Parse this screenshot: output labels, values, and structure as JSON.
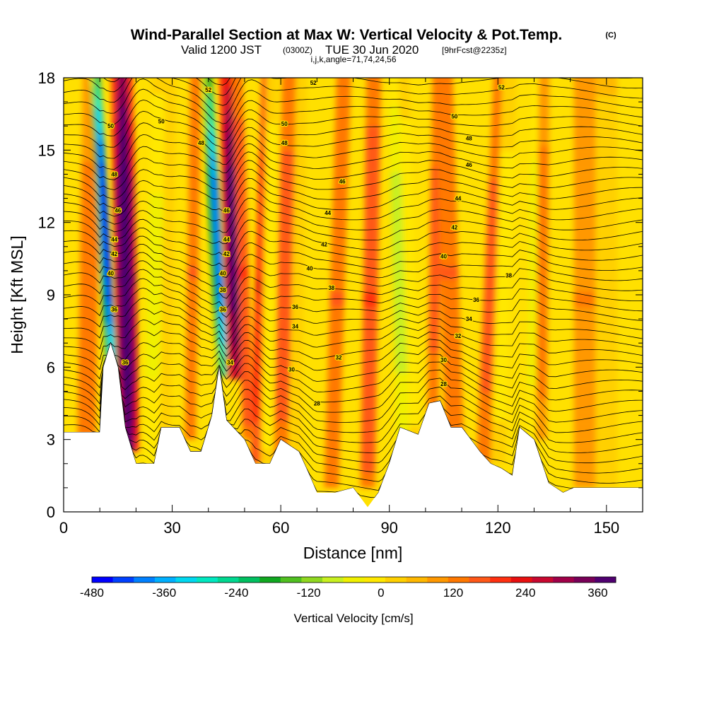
{
  "title": {
    "main": "Wind-Parallel Section at Max W: Vertical Velocity & Pot.Temp.",
    "copyright": "(C)",
    "valid_prefix": "Valid 1200 JST",
    "valid_utc": "(0300Z)",
    "valid_date": "TUE 30 Jun 2020",
    "forecast": "[9hrFcst@2235z]",
    "grid_info": "i,j,k,angle=71,74,24,56"
  },
  "chart_data": {
    "type": "heatmap",
    "xlabel": "Distance [nm]",
    "ylabel": "Height [Kft MSL]",
    "xlim": [
      0,
      160
    ],
    "ylim": [
      0,
      18
    ],
    "x_ticks": [
      0,
      30,
      60,
      90,
      120,
      150
    ],
    "y_ticks": [
      0,
      3,
      6,
      9,
      12,
      15,
      18
    ],
    "colorbar": {
      "title": "Vertical Velocity [cm/s]",
      "min": -480,
      "max": 390,
      "step": 30,
      "tick_values": [
        -480,
        -360,
        -240,
        -120,
        0,
        120,
        240,
        360
      ],
      "colors": [
        "#0000ff",
        "#0040ff",
        "#0080ff",
        "#00b0ff",
        "#00d8f0",
        "#00e8c0",
        "#00d890",
        "#00c060",
        "#10a820",
        "#50c020",
        "#90d820",
        "#c8f020",
        "#f0f000",
        "#ffe800",
        "#ffd000",
        "#ffb800",
        "#ff9800",
        "#ff7800",
        "#ff5818",
        "#ff3010",
        "#e81010",
        "#c80830",
        "#a00048",
        "#780058",
        "#500070"
      ]
    },
    "updrafts": [
      {
        "x": 18,
        "z_base": 2.5,
        "peak_wmax": 390
      },
      {
        "x": 48,
        "z_base": 5.5,
        "peak_wmax": 300
      }
    ],
    "downdrafts": [
      {
        "x": 13,
        "peak_wmin": -480
      },
      {
        "x": 44,
        "peak_wmin": -420
      }
    ],
    "theta_contour_labels": [
      {
        "x": 13,
        "z": 16.0,
        "value": "50"
      },
      {
        "x": 27,
        "z": 16.2,
        "value": "50"
      },
      {
        "x": 40,
        "z": 17.5,
        "value": "52"
      },
      {
        "x": 69,
        "z": 17.8,
        "value": "52"
      },
      {
        "x": 121,
        "z": 17.6,
        "value": "52"
      },
      {
        "x": 61,
        "z": 16.1,
        "value": "50"
      },
      {
        "x": 108,
        "z": 16.4,
        "value": "50"
      },
      {
        "x": 38,
        "z": 15.3,
        "value": "48"
      },
      {
        "x": 61,
        "z": 15.3,
        "value": "48"
      },
      {
        "x": 112,
        "z": 15.5,
        "value": "48"
      },
      {
        "x": 14,
        "z": 14.0,
        "value": "48"
      },
      {
        "x": 112,
        "z": 14.4,
        "value": "46"
      },
      {
        "x": 77,
        "z": 13.7,
        "value": "46"
      },
      {
        "x": 15,
        "z": 12.5,
        "value": "46"
      },
      {
        "x": 45,
        "z": 12.5,
        "value": "46"
      },
      {
        "x": 73,
        "z": 12.4,
        "value": "44"
      },
      {
        "x": 109,
        "z": 13.0,
        "value": "44"
      },
      {
        "x": 108,
        "z": 11.8,
        "value": "42"
      },
      {
        "x": 14,
        "z": 11.3,
        "value": "44"
      },
      {
        "x": 45,
        "z": 11.3,
        "value": "44"
      },
      {
        "x": 72,
        "z": 11.1,
        "value": "42"
      },
      {
        "x": 14,
        "z": 10.7,
        "value": "42"
      },
      {
        "x": 45,
        "z": 10.7,
        "value": "42"
      },
      {
        "x": 105,
        "z": 10.6,
        "value": "40"
      },
      {
        "x": 68,
        "z": 10.1,
        "value": "40"
      },
      {
        "x": 13,
        "z": 9.9,
        "value": "40"
      },
      {
        "x": 44,
        "z": 9.9,
        "value": "40"
      },
      {
        "x": 123,
        "z": 9.8,
        "value": "38"
      },
      {
        "x": 74,
        "z": 9.3,
        "value": "38"
      },
      {
        "x": 44,
        "z": 9.2,
        "value": "38"
      },
      {
        "x": 114,
        "z": 8.8,
        "value": "36"
      },
      {
        "x": 64,
        "z": 8.5,
        "value": "36"
      },
      {
        "x": 14,
        "z": 8.4,
        "value": "36"
      },
      {
        "x": 44,
        "z": 8.4,
        "value": "36"
      },
      {
        "x": 112,
        "z": 8.0,
        "value": "34"
      },
      {
        "x": 64,
        "z": 7.7,
        "value": "34"
      },
      {
        "x": 109,
        "z": 7.3,
        "value": "32"
      },
      {
        "x": 76,
        "z": 6.4,
        "value": "32"
      },
      {
        "x": 17,
        "z": 6.2,
        "value": "36"
      },
      {
        "x": 46,
        "z": 6.2,
        "value": "34"
      },
      {
        "x": 105,
        "z": 6.3,
        "value": "30"
      },
      {
        "x": 63,
        "z": 5.9,
        "value": "30"
      },
      {
        "x": 105,
        "z": 5.3,
        "value": "28"
      },
      {
        "x": 70,
        "z": 4.5,
        "value": "28"
      }
    ],
    "terrain_height_kft": [
      [
        0,
        3.3
      ],
      [
        10,
        3.3
      ],
      [
        11,
        6.0
      ],
      [
        13,
        7.0
      ],
      [
        15,
        6.0
      ],
      [
        17,
        3.5
      ],
      [
        20,
        2.0
      ],
      [
        25,
        2.0
      ],
      [
        27,
        3.5
      ],
      [
        32,
        3.5
      ],
      [
        35,
        2.5
      ],
      [
        38,
        2.5
      ],
      [
        41,
        4.0
      ],
      [
        43,
        6.0
      ],
      [
        45,
        3.8
      ],
      [
        50,
        3.0
      ],
      [
        53,
        2.0
      ],
      [
        57,
        2.0
      ],
      [
        60,
        3.0
      ],
      [
        65,
        2.5
      ],
      [
        68,
        1.5
      ],
      [
        70,
        0.8
      ],
      [
        75,
        0.8
      ],
      [
        80,
        1.0
      ],
      [
        84,
        0.2
      ],
      [
        87,
        0.8
      ],
      [
        90,
        2.0
      ],
      [
        93,
        3.5
      ],
      [
        98,
        3.2
      ],
      [
        101,
        4.5
      ],
      [
        104,
        4.6
      ],
      [
        107,
        3.5
      ],
      [
        110,
        3.5
      ],
      [
        115,
        2.5
      ],
      [
        118,
        2.0
      ],
      [
        121,
        1.8
      ],
      [
        124,
        1.5
      ],
      [
        126,
        3.5
      ],
      [
        130,
        3.0
      ],
      [
        134,
        1.2
      ],
      [
        138,
        0.8
      ],
      [
        141,
        1.0
      ],
      [
        144,
        1.0
      ],
      [
        150,
        1.0
      ],
      [
        156,
        1.0
      ],
      [
        160,
        1.0
      ]
    ]
  }
}
